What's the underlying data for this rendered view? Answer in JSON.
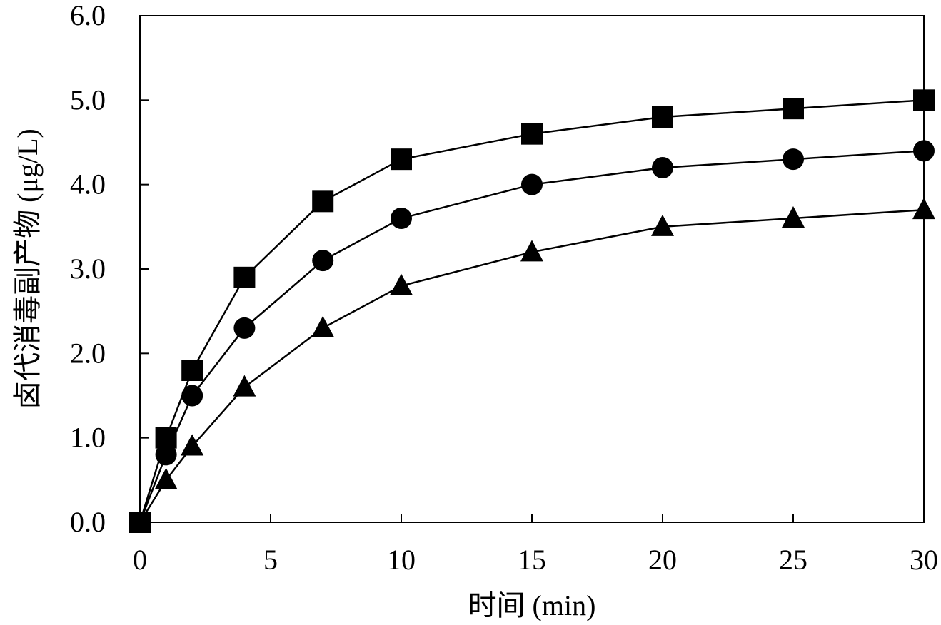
{
  "chart_data": {
    "type": "line",
    "xlabel": "时间 (min)",
    "ylabel": "卤代消毒副产物 (μg/L)",
    "xlim": [
      0,
      30
    ],
    "ylim": [
      0,
      6.0
    ],
    "x_ticks": [
      0,
      5,
      10,
      15,
      20,
      25,
      30
    ],
    "x_tick_labels": [
      "0",
      "5",
      "10",
      "15",
      "20",
      "25",
      "30"
    ],
    "y_ticks": [
      0,
      1,
      2,
      3,
      4,
      5,
      6
    ],
    "y_tick_labels": [
      "0.0",
      "1.0",
      "2.0",
      "3.0",
      "4.0",
      "5.0",
      "6.0"
    ],
    "grid": false,
    "legend": "none",
    "x": [
      0,
      1,
      2,
      4,
      7,
      10,
      15,
      20,
      25,
      30
    ],
    "series": [
      {
        "marker": "square",
        "color": "#000000",
        "values": [
          0,
          1.0,
          1.8,
          2.9,
          3.8,
          4.3,
          4.6,
          4.8,
          4.9,
          5.0
        ]
      },
      {
        "marker": "circle",
        "color": "#000000",
        "values": [
          0,
          0.8,
          1.5,
          2.3,
          3.1,
          3.6,
          4.0,
          4.2,
          4.3,
          4.4
        ]
      },
      {
        "marker": "triangle",
        "color": "#000000",
        "values": [
          0,
          0.5,
          0.9,
          1.6,
          2.3,
          2.8,
          3.2,
          3.5,
          3.6,
          3.7
        ]
      }
    ]
  }
}
